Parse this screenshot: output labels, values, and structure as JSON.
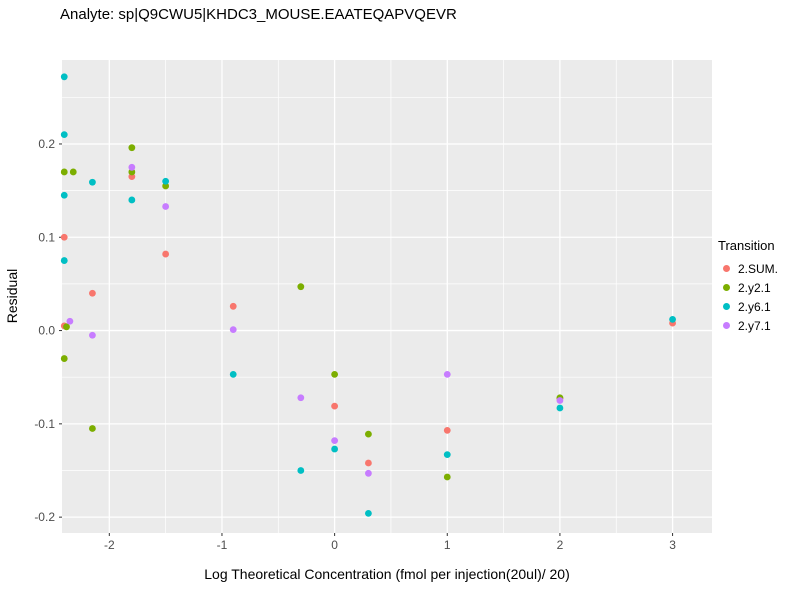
{
  "chart_data": {
    "type": "scatter",
    "title": "Analyte: sp|Q9CWU5|KHDC3_MOUSE.EAATEQAPVQEVR",
    "xlabel": "Log Theoretical Concentration (fmol per injection(20ul)/ 20)",
    "ylabel": "Residual",
    "legend_title": "Transition",
    "legend_position": "right",
    "grid": "major+minor",
    "panel_bg": "#EBEBEB",
    "grid_color": "#FFFFFF",
    "tick_label_color": "#4d4d4d",
    "xlim": [
      -2.42,
      3.35
    ],
    "ylim": [
      -0.217,
      0.29
    ],
    "x_ticks": [
      {
        "v": -2,
        "label": "-2"
      },
      {
        "v": -1,
        "label": "-1"
      },
      {
        "v": 0,
        "label": "0"
      },
      {
        "v": 1,
        "label": "1"
      },
      {
        "v": 2,
        "label": "2"
      },
      {
        "v": 3,
        "label": "3"
      }
    ],
    "y_ticks": [
      {
        "v": 0.2,
        "label": "0.2"
      },
      {
        "v": 0.1,
        "label": "0.1"
      },
      {
        "v": 0.0,
        "label": "0.0"
      },
      {
        "v": -0.1,
        "label": "-0.1"
      },
      {
        "v": -0.2,
        "label": "-0.2"
      }
    ],
    "x_minor": [
      -1.5,
      -0.5,
      0.5,
      1.5,
      2.5
    ],
    "y_minor": [
      0.25,
      0.15,
      0.05,
      -0.05,
      -0.15
    ],
    "series": [
      {
        "name": "2.SUM.",
        "color": "#F8766D",
        "points": [
          [
            -2.4,
            0.1
          ],
          [
            -2.4,
            0.005
          ],
          [
            -2.15,
            0.04
          ],
          [
            -1.8,
            0.165
          ],
          [
            -1.5,
            0.082
          ],
          [
            -0.9,
            0.026
          ],
          [
            0.0,
            -0.081
          ],
          [
            0.3,
            -0.142
          ],
          [
            1.0,
            -0.107
          ],
          [
            2.0,
            -0.073
          ],
          [
            3.0,
            0.008
          ]
        ]
      },
      {
        "name": "2.y2.1",
        "color": "#7CAE00",
        "points": [
          [
            -2.4,
            0.17
          ],
          [
            -2.32,
            0.17
          ],
          [
            -2.38,
            0.004
          ],
          [
            -2.4,
            -0.03
          ],
          [
            -2.15,
            -0.105
          ],
          [
            -1.8,
            0.196
          ],
          [
            -1.8,
            0.17
          ],
          [
            -1.5,
            0.155
          ],
          [
            -0.3,
            0.047
          ],
          [
            0.0,
            -0.047
          ],
          [
            0.3,
            -0.111
          ],
          [
            1.0,
            -0.157
          ],
          [
            2.0,
            -0.072
          ]
        ]
      },
      {
        "name": "2.y6.1",
        "color": "#00BFC4",
        "points": [
          [
            -2.4,
            0.272
          ],
          [
            -2.4,
            0.21
          ],
          [
            -2.4,
            0.145
          ],
          [
            -2.4,
            0.075
          ],
          [
            -2.15,
            0.159
          ],
          [
            -1.8,
            0.14
          ],
          [
            -1.5,
            0.16
          ],
          [
            -0.9,
            -0.047
          ],
          [
            -0.3,
            -0.15
          ],
          [
            0.0,
            -0.127
          ],
          [
            0.3,
            -0.196
          ],
          [
            1.0,
            -0.133
          ],
          [
            2.0,
            -0.083
          ],
          [
            3.0,
            0.012
          ]
        ]
      },
      {
        "name": "2.y7.1",
        "color": "#C77CFF",
        "points": [
          [
            -2.35,
            0.01
          ],
          [
            -2.15,
            -0.005
          ],
          [
            -1.8,
            0.175
          ],
          [
            -1.5,
            0.133
          ],
          [
            -0.9,
            0.001
          ],
          [
            -0.3,
            -0.072
          ],
          [
            0.0,
            -0.118
          ],
          [
            0.3,
            -0.153
          ],
          [
            1.0,
            -0.047
          ],
          [
            2.0,
            -0.075
          ]
        ]
      }
    ]
  }
}
